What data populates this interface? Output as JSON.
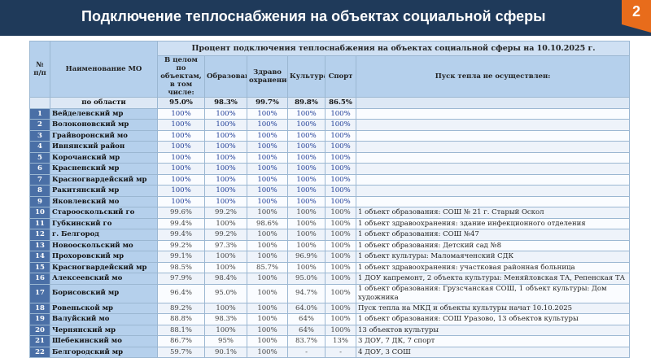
{
  "header": {
    "title": "Подключение теплоснабжения на объектах социальной сферы",
    "page_number": "2"
  },
  "table": {
    "headers": {
      "num": "№ п/п",
      "name": "Наименование МО",
      "percent_title": "Процент подключения теплоснабжения на объектах социальной сферы на 10.10.2025 г.",
      "total": "В целом по объектам, в том числе:",
      "education": "Образование",
      "health": "Здраво охранение",
      "culture": "Культура",
      "sport": "Спорт",
      "not_started": "Пуск тепла не осуществлен:"
    },
    "summary": {
      "name": "по области",
      "total": "95.0%",
      "education": "98.3%",
      "health": "99.7%",
      "culture": "89.8%",
      "sport": "86.5%",
      "note": ""
    },
    "rows": [
      {
        "num": "1",
        "name": "Вейделевский мр",
        "total": "100%",
        "education": "100%",
        "health": "100%",
        "culture": "100%",
        "sport": "100%",
        "note": ""
      },
      {
        "num": "2",
        "name": "Волоконовский мр",
        "total": "100%",
        "education": "100%",
        "health": "100%",
        "culture": "100%",
        "sport": "100%",
        "note": ""
      },
      {
        "num": "3",
        "name": "Грайворонский мо",
        "total": "100%",
        "education": "100%",
        "health": "100%",
        "culture": "100%",
        "sport": "100%",
        "note": ""
      },
      {
        "num": "4",
        "name": "Ивнянский район",
        "total": "100%",
        "education": "100%",
        "health": "100%",
        "culture": "100%",
        "sport": "100%",
        "note": ""
      },
      {
        "num": "5",
        "name": "Корочанский мр",
        "total": "100%",
        "education": "100%",
        "health": "100%",
        "culture": "100%",
        "sport": "100%",
        "note": ""
      },
      {
        "num": "6",
        "name": "Красненский мр",
        "total": "100%",
        "education": "100%",
        "health": "100%",
        "culture": "100%",
        "sport": "100%",
        "note": ""
      },
      {
        "num": "7",
        "name": "Красногвардейский мр",
        "total": "100%",
        "education": "100%",
        "health": "100%",
        "culture": "100%",
        "sport": "100%",
        "note": ""
      },
      {
        "num": "8",
        "name": "Ракитянский мр",
        "total": "100%",
        "education": "100%",
        "health": "100%",
        "culture": "100%",
        "sport": "100%",
        "note": ""
      },
      {
        "num": "9",
        "name": "Яковлевский мо",
        "total": "100%",
        "education": "100%",
        "health": "100%",
        "culture": "100%",
        "sport": "100%",
        "note": ""
      },
      {
        "num": "10",
        "name": "Старооскольский го",
        "total": "99.6%",
        "education": "99.2%",
        "health": "100%",
        "culture": "100%",
        "sport": "100%",
        "note": "1 объект образования: СОШ № 21 г. Старый Оскол"
      },
      {
        "num": "11",
        "name": "Губкинский го",
        "total": "99.4%",
        "education": "100%",
        "health": "98.6%",
        "culture": "100%",
        "sport": "100%",
        "note": "1 объект здравоохранения: здание инфекционного отделения"
      },
      {
        "num": "12",
        "name": "г. Белгород",
        "total": "99.4%",
        "education": "99.2%",
        "health": "100%",
        "culture": "100%",
        "sport": "100%",
        "note": "1 объект образования: СОШ №47"
      },
      {
        "num": "13",
        "name": "Новооскольский мо",
        "total": "99.2%",
        "education": "97.3%",
        "health": "100%",
        "culture": "100%",
        "sport": "100%",
        "note": "1 объект образования: Детский сад №8"
      },
      {
        "num": "14",
        "name": "Прохоровский мр",
        "total": "99.1%",
        "education": "100%",
        "health": "100%",
        "culture": "96.9%",
        "sport": "100%",
        "note": "1 объект культуры: Маломаяченский СДК"
      },
      {
        "num": "15",
        "name": "Красногвардейский мр",
        "total": "98.5%",
        "education": "100%",
        "health": "85.7%",
        "culture": "100%",
        "sport": "100%",
        "note": "1 объект здравоохранения: участковая районная больница"
      },
      {
        "num": "16",
        "name": "Алексеевский мо",
        "total": "97.9%",
        "education": "98.4%",
        "health": "100%",
        "culture": "95.0%",
        "sport": "100%",
        "note": "1 ДОУ капремонт, 2 объекта культуры: Меняйловская ТА, Репенская ТА"
      },
      {
        "num": "17",
        "name": "Борисовский мр",
        "total": "96.4%",
        "education": "95.0%",
        "health": "100%",
        "culture": "94.7%",
        "sport": "100%",
        "note": "1 объект образования: Грузсчанская СОШ, 1 объект культуры: Дом художника"
      },
      {
        "num": "18",
        "name": "Ровеньской мр",
        "total": "89.2%",
        "education": "100%",
        "health": "100%",
        "culture": "64.0%",
        "sport": "100%",
        "note": "Пуск тепла на МКД и объекты культуры начат 10.10.2025"
      },
      {
        "num": "19",
        "name": "Валуйский мо",
        "total": "88.8%",
        "education": "98.3%",
        "health": "100%",
        "culture": "64%",
        "sport": "100%",
        "note": "1 объект образования: СОШ Уразово, 13 объектов культуры"
      },
      {
        "num": "20",
        "name": "Чернянский мр",
        "total": "88.1%",
        "education": "100%",
        "health": "100%",
        "culture": "64%",
        "sport": "100%",
        "note": "13 объектов культуры"
      },
      {
        "num": "21",
        "name": "Шебекинский мо",
        "total": "86.7%",
        "education": "95%",
        "health": "100%",
        "culture": "83.7%",
        "sport": "13%",
        "note": "3 ДОУ, 7 ДК, 7 спорт"
      },
      {
        "num": "22",
        "name": "Белгородский мр",
        "total": "59.7%",
        "education": "90.1%",
        "health": "100%",
        "culture": "-",
        "sport": "-",
        "note": "4 ДОУ, 3 СОШ"
      }
    ]
  }
}
